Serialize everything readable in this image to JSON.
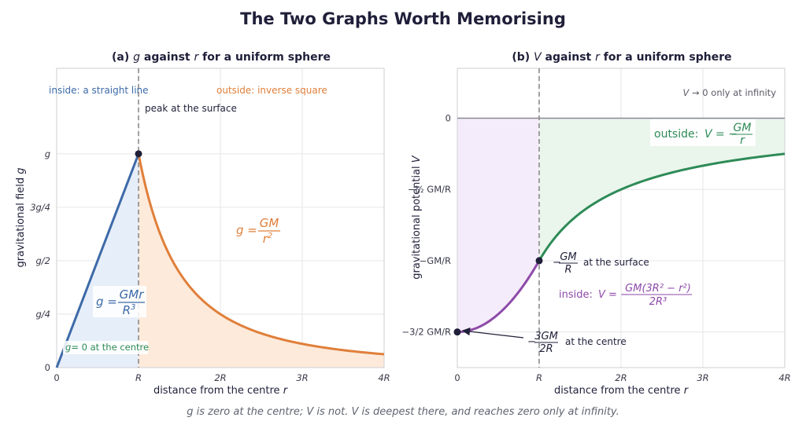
{
  "title": "The Two Graphs Worth Memorising",
  "footer": "g is zero at the centre; V is not. V is deepest there, and reaches zero only at infinity.",
  "colors": {
    "inside_g": "#3d6aa8",
    "outside_g": "#e07f3a",
    "inside_V": "#8e4aa9",
    "outside_V": "#2e8b57",
    "fill_inside_g": "#e6eef9",
    "fill_outside_g": "#fdeadb",
    "fill_inside_V": "#f4ecfa",
    "fill_outside_V": "#eaf5ec",
    "dashed": "#8a8a8a",
    "point": "#1f1f3a"
  },
  "chart_data": [
    {
      "type": "line",
      "panel_title_prefix": "(a)",
      "panel_title_var": "g",
      "panel_title_rest": "against",
      "panel_title_var2": "r",
      "panel_title_end": "for a uniform sphere",
      "xlabel": "distance from the centre",
      "xlabel_var": "r",
      "ylabel": "gravitational field",
      "ylabel_var": "g",
      "xlim": [
        0,
        4
      ],
      "ylim": [
        0,
        1.4
      ],
      "xticks": [
        0,
        1,
        2,
        3,
        4
      ],
      "xtick_labels": [
        "0",
        "R",
        "2R",
        "3R",
        "4R"
      ],
      "yticks": [
        0,
        0.25,
        0.5,
        0.75,
        1.0
      ],
      "ytick_labels": [
        "0",
        "g/4",
        "g/2",
        "3g/4",
        "g"
      ],
      "surface_r": 1,
      "series": [
        {
          "region": "inside",
          "formula": "g = GMr/R^3",
          "x": [
            0,
            1
          ],
          "y": [
            0,
            1
          ]
        },
        {
          "region": "outside",
          "formula": "g = GM/r^2",
          "x": [
            1,
            1.25,
            1.5,
            2,
            2.5,
            3,
            3.5,
            4
          ],
          "y": [
            1,
            0.64,
            0.444,
            0.25,
            0.16,
            0.111,
            0.082,
            0.0625
          ]
        }
      ],
      "annotations": {
        "inside_region": "inside: a straight line",
        "outside_region": "outside: inverse square",
        "peak": "peak at the surface",
        "centre": "= 0 at the centre",
        "centre_var": "g",
        "inside_formula_lhs": "g =",
        "inside_formula_num": "GMr",
        "inside_formula_den": "R",
        "inside_formula_den_exp": "3",
        "outside_formula_lhs": "g =",
        "outside_formula_num": "GM",
        "outside_formula_den": "r",
        "outside_formula_den_exp": "2"
      }
    },
    {
      "type": "line",
      "panel_title_prefix": "(b)",
      "panel_title_var": "V",
      "panel_title_rest": "against",
      "panel_title_var2": "r",
      "panel_title_end": "for a uniform sphere",
      "xlabel": "distance from the centre",
      "xlabel_var": "r",
      "ylabel": "gravitational potential",
      "ylabel_var": "V",
      "xlim": [
        0,
        4
      ],
      "ylim": [
        -1.75,
        0.35
      ],
      "xticks": [
        0,
        1,
        2,
        3,
        4
      ],
      "xtick_labels": [
        "0",
        "R",
        "2R",
        "3R",
        "4R"
      ],
      "yticks": [
        0,
        -0.5,
        -1.0,
        -1.5
      ],
      "ytick_labels": [
        "0",
        "−½ GM/R",
        "−GM/R",
        "−3/2 GM/R"
      ],
      "surface_r": 1,
      "series": [
        {
          "region": "inside",
          "formula": "V = −GM(3R^2 − r^2)/(2R^3)",
          "x": [
            0,
            0.25,
            0.5,
            0.75,
            1
          ],
          "y": [
            -1.5,
            -1.469,
            -1.375,
            -1.219,
            -1.0
          ]
        },
        {
          "region": "outside",
          "formula": "V = −GM/r",
          "x": [
            1,
            1.5,
            2,
            2.5,
            3,
            3.5,
            4
          ],
          "y": [
            -1.0,
            -0.667,
            -0.5,
            -0.4,
            -0.333,
            -0.286,
            -0.25
          ]
        }
      ],
      "annotations": {
        "infinity_note": "→ 0 only at infinity",
        "infinity_var": "V",
        "outside_lhs": "outside:",
        "outside_eq": "V = −",
        "outside_num": "GM",
        "outside_den": "r",
        "surface_lhs": "−",
        "surface_num": "GM",
        "surface_den": "R",
        "surface_text": "at the surface",
        "inside_lhs": "inside:",
        "inside_eq": "V = −",
        "inside_num": "GM(3R² − r²)",
        "inside_den": "2R³",
        "centre_lhs": "−",
        "centre_num": "3GM",
        "centre_den": "2R",
        "centre_text": "at the centre"
      }
    }
  ]
}
